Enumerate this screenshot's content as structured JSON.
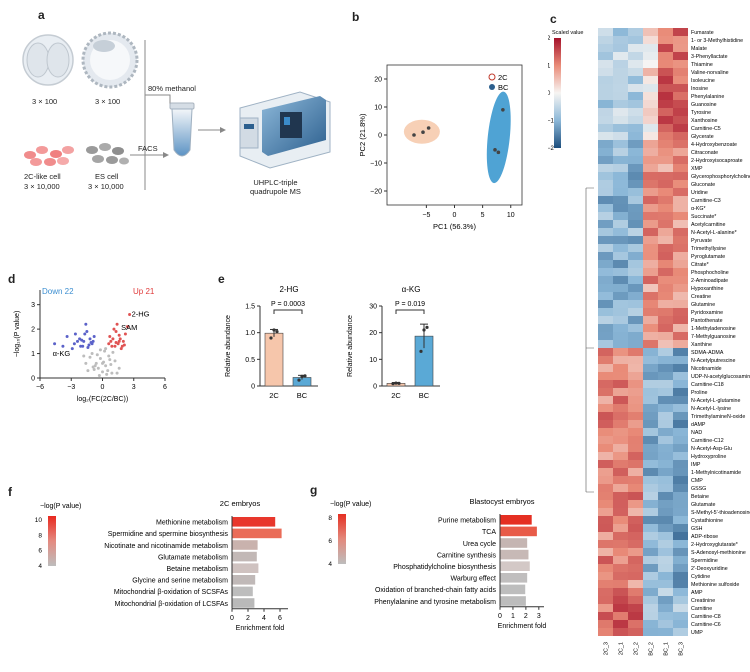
{
  "panel_letters": [
    "a",
    "b",
    "c",
    "d",
    "e",
    "f",
    "g"
  ],
  "panel_a": {
    "embryo_counts": [
      "3 × 100",
      "3 × 100"
    ],
    "cell_labels": [
      "2C-like cell",
      "ES cell"
    ],
    "cell_counts": [
      "3 × 10,000",
      "3 × 10,000"
    ],
    "step_methanol": "80% methanol",
    "step_facs": "FACS",
    "instrument": [
      "UHPLC-triple",
      "quadrupole MS"
    ]
  },
  "chart_data": [
    {
      "panel": "b",
      "type": "scatter",
      "xlabel": "PC1 (56.3%)",
      "ylabel": "PC2 (21.8%)",
      "xlim": [
        -12,
        12
      ],
      "ylim": [
        -25,
        25
      ],
      "xticks": [
        "−5",
        "0",
        "5",
        "10"
      ],
      "yticks": [
        "20",
        "10",
        "0",
        "−10",
        "−20"
      ],
      "legend": [
        "2C",
        "BC"
      ],
      "colors": {
        "2C": "#f6c8a9",
        "BC": "#4fa3d4"
      },
      "series": [
        {
          "name": "2C",
          "x": [
            -7.2,
            -4.6,
            -5.6
          ],
          "y": [
            0.0,
            2.5,
            1.0
          ]
        },
        {
          "name": "BC",
          "x": [
            8.6,
            7.2,
            7.8
          ],
          "y": [
            9.0,
            -5.3,
            -6.2
          ]
        }
      ]
    },
    {
      "panel": "c",
      "type": "heatmap",
      "legend_title": "Scaled value",
      "scale_ticks": [
        "2",
        "1",
        "0",
        "−1",
        "−2"
      ],
      "columns": [
        "2C_3",
        "2C_1",
        "2C_2",
        "BC_2",
        "BC_1",
        "BC_3"
      ],
      "rows": [
        "Fumarate",
        "1- or 3-Methylhistidine",
        "Malate",
        "3-Phenyllactate",
        "Thiamine",
        "Valine-norvaline",
        "Isoleucine",
        "Inosine",
        "Phenylalanine",
        "Guanosine",
        "Tyrosine",
        "Xanthosine",
        "Carnitine-C5",
        "Glycerate",
        "4-Hydroxybenzoate",
        "Citraconate",
        "2-Hydroxyisocaproate",
        "XMP",
        "Glycerophosphorylcholine",
        "Gluconate",
        "Uridine",
        "Carnitine-C3",
        "α-KG*",
        "Succinate*",
        "Acetylcarnitine",
        "N-Acetyl-L-alanine*",
        "Pyruvate",
        "Trimethyllysine",
        "Pyroglutamate",
        "Citrate*",
        "Phosphocholine",
        "2-Aminoadipate",
        "Hypoxanthine",
        "Creatine",
        "Glutamine",
        "Pyridoxamine",
        "Pantothenate",
        "1-Methyladenosine",
        "7-Methylguanosine",
        "Xanthine",
        "SDMA-ADMA",
        "N-Acetylputrescine",
        "Nicotinamide",
        "UDP-N-acetylglucosamine",
        "Carnitine-C18",
        "Proline",
        "N-Acetyl-L-glutamine",
        "N-Acetyl-L-lysine",
        "TrimethylamineN-oxide",
        "dAMP",
        "NAD",
        "Carnitine-C12",
        "N-Acetyl-Asp-Glu",
        "Hydroxyproline",
        "IMP",
        "1-Methylnicotinamide",
        "CMP",
        "GSSG",
        "Betaine",
        "Glutamate",
        "S-Methyl-5'-thioadenosine",
        "Cystathionine",
        "GSH",
        "ADP-ribose",
        "2-Hydroxyglutarate*",
        "S-Adenosyl-methionine",
        "Spermidine",
        "2'-Deoxyuridine",
        "Cytidine",
        "Methionine sulfoxide",
        "AMP",
        "Creatinine",
        "Carnitine",
        "Carnitine-C8",
        "Carnitine-C6",
        "UMP"
      ]
    },
    {
      "panel": "d",
      "type": "scatter",
      "xlabel": "log₂(FC(2C/BC))",
      "ylabel": "−log₁₀(P value)",
      "xticks": [
        "−6",
        "−3",
        "0",
        "3",
        "6"
      ],
      "yticks": [
        "3",
        "2",
        "1",
        "0"
      ],
      "xlim": [
        -6,
        6
      ],
      "ylim": [
        0,
        3.6
      ],
      "down_label": "Down 22",
      "up_label": "Up 21",
      "annotations": [
        "2-HG",
        "SAM",
        "α-KG"
      ],
      "up": {
        "x": [
          0.6,
          1.0,
          1.3,
          1.6,
          1.9,
          2.2,
          1.4,
          0.9,
          1.8,
          2.6,
          1.1,
          1.5,
          0.7,
          2.0,
          1.2,
          2.4,
          1.7,
          0.8,
          2.1,
          1.3,
          1.6
        ],
        "y": [
          1.4,
          1.6,
          1.9,
          1.5,
          1.3,
          1.8,
          2.2,
          1.3,
          1.2,
          2.6,
          2.0,
          1.4,
          1.7,
          1.5,
          1.3,
          2.1,
          1.6,
          1.5,
          1.35,
          1.45,
          1.75
        ]
      },
      "down": {
        "x": [
          -4.6,
          -3.4,
          -2.6,
          -1.8,
          -1.5,
          -1.2,
          -2.1,
          -2.9,
          -1.6,
          -1.0,
          -2.4,
          -1.9,
          -0.8,
          -1.3,
          -2.2,
          -3.8,
          -1.1,
          -2.7,
          -1.7,
          -0.9,
          -1.4,
          -2.0
        ],
        "y": [
          1.4,
          1.7,
          1.8,
          1.5,
          1.9,
          1.6,
          1.3,
          1.2,
          2.2,
          1.4,
          1.5,
          1.3,
          1.7,
          1.35,
          1.6,
          1.3,
          1.45,
          1.4,
          1.8,
          1.5,
          1.25,
          1.55
        ]
      },
      "ns": {
        "x": [
          -1.4,
          -0.6,
          -0.2,
          0.3,
          0.9,
          -1.0,
          0.2,
          -0.4,
          0.6,
          1.2,
          -0.8,
          0.0,
          0.4,
          -1.6,
          1.6,
          -0.2,
          0.8,
          -1.2,
          1.0,
          -0.5,
          0.5,
          -0.9,
          0.1,
          0.7,
          -0.3,
          0.3,
          -0.7,
          1.4,
          -1.8,
          0.0
        ],
        "y": [
          0.3,
          0.6,
          0.8,
          0.5,
          0.2,
          1.0,
          1.1,
          0.4,
          0.9,
          0.7,
          0.35,
          0.25,
          0.15,
          0.6,
          0.4,
          1.15,
          0.55,
          0.85,
          1.05,
          0.95,
          0.3,
          0.45,
          0.65,
          0.75,
          0.1,
          1.2,
          0.5,
          0.2,
          0.9,
          0.6
        ]
      },
      "highlight": {
        "2-HG": [
          2.6,
          2.6
        ],
        "SAM": [
          1.6,
          2.0
        ],
        "α-KG": [
          -4.6,
          1.4
        ]
      }
    },
    {
      "panel": "e",
      "type": "bar",
      "title": "2-HG",
      "categories": [
        "2C",
        "BC"
      ],
      "values": [
        0.99,
        0.16
      ],
      "errors": [
        0.07,
        0.04
      ],
      "points": [
        [
          0.9,
          1.05,
          1.02
        ],
        [
          0.11,
          0.18,
          0.19
        ]
      ],
      "ylabel": "Relative abundance",
      "ylim": [
        0,
        1.5
      ],
      "yticks": [
        "0",
        "0.5",
        "1.0",
        "1.5"
      ],
      "pvalue": "P = 0.0003",
      "colors": [
        "#f6c6ab",
        "#5aa9d6"
      ]
    },
    {
      "panel": "e",
      "type": "bar",
      "title": "α-KG",
      "categories": [
        "2C",
        "BC"
      ],
      "values": [
        1.0,
        18.7
      ],
      "errors": [
        0.3,
        4.5
      ],
      "points": [
        [
          0.9,
          1.1,
          1.0
        ],
        [
          13.0,
          21.0,
          22.0
        ]
      ],
      "ylabel": "Relative abundance",
      "ylim": [
        0,
        30
      ],
      "yticks": [
        "0",
        "10",
        "20",
        "30"
      ],
      "pvalue": "P = 0.019",
      "colors": [
        "#f6c6ab",
        "#5aa9d6"
      ]
    },
    {
      "panel": "f",
      "type": "bar",
      "orientation": "horizontal",
      "title": "2C embryos",
      "xlabel": "Enrichment fold",
      "xticks": [
        "0",
        "2",
        "4",
        "6"
      ],
      "xlim": [
        0,
        7
      ],
      "legend_title": "−log(P value)",
      "legend_ticks": [
        "10",
        "8",
        "6",
        "4"
      ],
      "categories": [
        "Methionine metabolism",
        "Spermidine and spermine biosynthesis",
        "Nicotinate and nicotinamide metabolism",
        "Glutamate metabolism",
        "Betaine metabolism",
        "Glycine and serine metabolism",
        "Mitochondrial β-oxidation of SCSFAs",
        "Mitochondrial β-oxidation of LCSFAs"
      ],
      "values": [
        5.4,
        6.2,
        3.2,
        3.1,
        3.3,
        2.9,
        2.6,
        2.8
      ],
      "colors": [
        "#e8372c",
        "#ea6c58",
        "#c9b2ad",
        "#c2b8b6",
        "#cfc2c0",
        "#c0b9b8",
        "#bdbdbd",
        "#b9b9b9"
      ]
    },
    {
      "panel": "g",
      "type": "bar",
      "orientation": "horizontal",
      "title": "Blastocyst embryos",
      "xlabel": "Enrichment fold",
      "xticks": [
        "0",
        "1",
        "2",
        "3"
      ],
      "xlim": [
        0,
        3.4
      ],
      "legend_title": "−log(P value)",
      "legend_ticks": [
        "8",
        "6",
        "4"
      ],
      "categories": [
        "Purine metabolism",
        "TCA",
        "Urea cycle",
        "Carnitine synthesis",
        "Phosphatidylcholine biosynthesis",
        "Warburg effect",
        "Oxidation of branched-chain fatty acids",
        "Phenylalanine and tyrosine metabolism"
      ],
      "values": [
        2.45,
        2.85,
        2.1,
        2.2,
        2.3,
        2.1,
        1.95,
        2.0
      ],
      "colors": [
        "#e52f22",
        "#e85b48",
        "#c5b5b2",
        "#c7b9b6",
        "#d3c8c6",
        "#c0bebe",
        "#bdbdbd",
        "#bcbcbc"
      ]
    }
  ]
}
